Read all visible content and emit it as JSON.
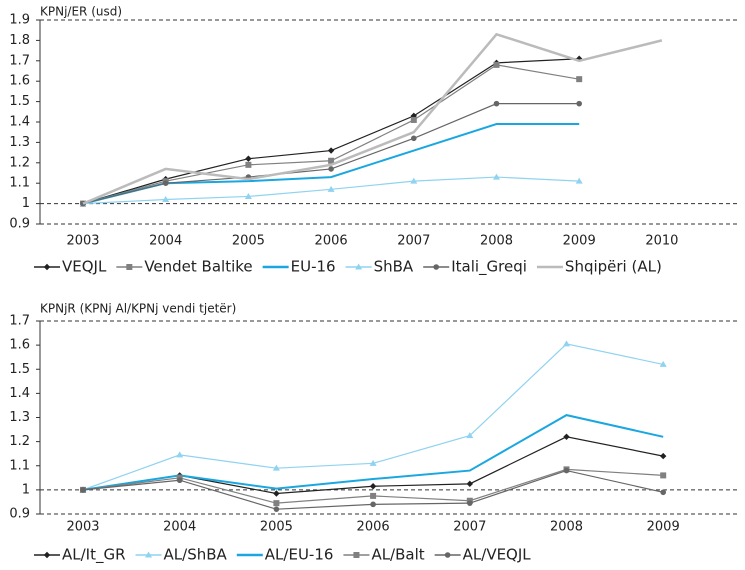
{
  "chart_data": [
    {
      "type": "line",
      "y_label": "KPNj/ER (usd)",
      "categories": [
        "2003",
        "2004",
        "2005",
        "2006",
        "2007",
        "2008",
        "2009",
        "2010"
      ],
      "ylim": [
        0.9,
        1.9
      ],
      "yticks": [
        0.9,
        1,
        1.1,
        1.2,
        1.3,
        1.4,
        1.5,
        1.6,
        1.7,
        1.8,
        1.9
      ],
      "reference_line": 1,
      "series": [
        {
          "name": "VEQJL",
          "color": "#222222",
          "marker": "diamond",
          "values": [
            1,
            1.12,
            1.22,
            1.26,
            1.43,
            1.69,
            1.71,
            null
          ]
        },
        {
          "name": "Vendet Baltike",
          "color": "#808080",
          "marker": "square",
          "values": [
            1,
            1.11,
            1.19,
            1.21,
            1.41,
            1.68,
            1.61,
            null
          ]
        },
        {
          "name": "EU-16",
          "color": "#1aa7e0",
          "marker": "none",
          "values": [
            1,
            1.1,
            1.11,
            1.13,
            1.26,
            1.39,
            1.39,
            null
          ]
        },
        {
          "name": "ShBA",
          "color": "#8fd3f0",
          "marker": "triangle",
          "values": [
            1,
            1.02,
            1.035,
            1.07,
            1.11,
            1.13,
            1.11,
            null
          ]
        },
        {
          "name": "Itali_Greqi",
          "color": "#666666",
          "marker": "circle",
          "values": [
            1,
            1.1,
            1.13,
            1.17,
            1.32,
            1.49,
            1.49,
            null
          ]
        },
        {
          "name": "Shqipëri (AL)",
          "color": "#bbbbbb",
          "marker": "none",
          "values": [
            1,
            1.17,
            1.12,
            1.19,
            1.35,
            1.83,
            1.7,
            1.8
          ]
        }
      ]
    },
    {
      "type": "line",
      "y_label": "KPNjR (KPNj Al/KPNj vendi tjetër)",
      "categories": [
        "2003",
        "2004",
        "2005",
        "2006",
        "2007",
        "2008",
        "2009"
      ],
      "ylim": [
        0.9,
        1.7
      ],
      "yticks": [
        0.9,
        1,
        1.1,
        1.2,
        1.3,
        1.4,
        1.5,
        1.6,
        1.7
      ],
      "reference_line": 1,
      "series": [
        {
          "name": "AL/It_GR",
          "color": "#222222",
          "marker": "diamond",
          "values": [
            1,
            1.06,
            0.985,
            1.015,
            1.025,
            1.22,
            1.14
          ]
        },
        {
          "name": "AL/ShBA",
          "color": "#8fd3f0",
          "marker": "triangle",
          "values": [
            1,
            1.145,
            1.09,
            1.11,
            1.225,
            1.605,
            1.52
          ]
        },
        {
          "name": "AL/EU-16",
          "color": "#1aa7e0",
          "marker": "none",
          "values": [
            1,
            1.06,
            1.005,
            1.045,
            1.08,
            1.31,
            1.22
          ]
        },
        {
          "name": "AL/Balt",
          "color": "#808080",
          "marker": "square",
          "values": [
            1,
            1.05,
            0.945,
            0.975,
            0.955,
            1.085,
            1.06
          ]
        },
        {
          "name": "AL/VEQJL",
          "color": "#666666",
          "marker": "circle",
          "values": [
            1,
            1.04,
            0.92,
            0.94,
            0.945,
            1.08,
            0.99
          ]
        }
      ]
    }
  ]
}
